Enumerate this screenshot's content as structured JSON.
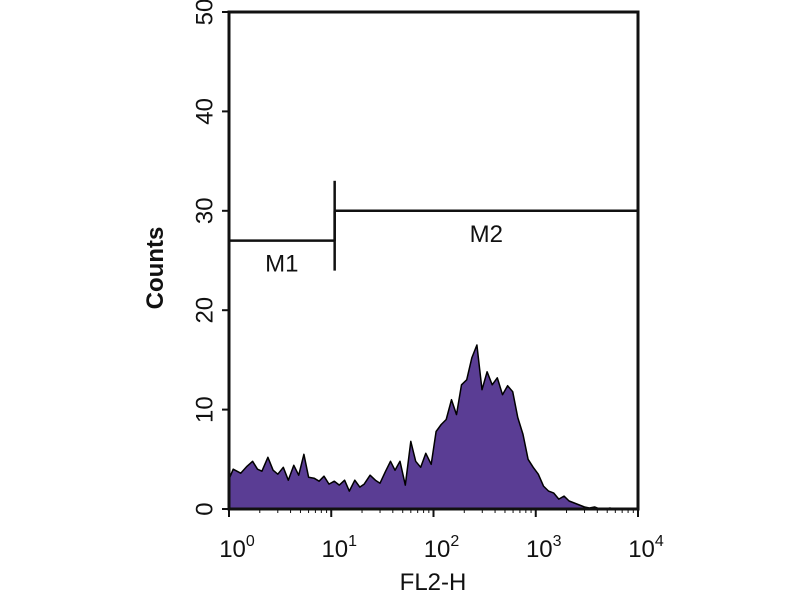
{
  "chart_data": {
    "type": "area",
    "title": "",
    "xlabel": "FL2-H",
    "ylabel": "Counts",
    "x_scale": "log",
    "xlim": [
      1,
      10000
    ],
    "ylim": [
      0,
      50
    ],
    "x_ticks": [
      {
        "base": "10",
        "exp": "0",
        "value": 1
      },
      {
        "base": "10",
        "exp": "1",
        "value": 10
      },
      {
        "base": "10",
        "exp": "2",
        "value": 100
      },
      {
        "base": "10",
        "exp": "3",
        "value": 1000
      },
      {
        "base": "10",
        "exp": "4",
        "value": 10000
      }
    ],
    "y_ticks": [
      {
        "label": "0",
        "value": 0
      },
      {
        "label": "10",
        "value": 10
      },
      {
        "label": "20",
        "value": 20
      },
      {
        "label": "30",
        "value": 30
      },
      {
        "label": "40",
        "value": 40
      },
      {
        "label": "50",
        "value": 50
      }
    ],
    "grid": false,
    "fill_color": "#5a3d94",
    "line_color": "#000000",
    "series": [
      {
        "x": [
          1,
          1.1,
          1.3,
          1.5,
          1.7,
          1.9,
          2.1,
          2.4,
          2.7,
          3.0,
          3.4,
          3.8,
          4.3,
          4.8,
          5.4,
          6.0,
          6.8,
          7.6,
          8.5,
          9.5,
          10.7,
          12,
          13.5,
          15,
          17,
          19,
          21,
          24,
          27,
          30,
          34,
          38,
          42,
          47,
          53,
          60,
          67,
          75,
          84,
          95,
          106,
          119,
          133,
          150,
          168,
          188,
          211,
          237,
          266,
          298,
          334,
          375,
          421,
          473,
          530,
          595,
          668,
          750,
          841,
          944,
          1060,
          1190,
          1335,
          1500,
          1680,
          1890,
          2120,
          2380,
          2670,
          3000,
          3350,
          3760,
          4220,
          4730,
          5310,
          5960,
          6690,
          7500,
          8410,
          9440,
          10000
        ],
        "y": [
          3,
          4,
          3.6,
          4.3,
          4.8,
          4,
          3.8,
          5.2,
          3.9,
          3.5,
          4.2,
          2.9,
          4.4,
          3.4,
          5.5,
          3.2,
          3.1,
          2.8,
          3.3,
          2.5,
          2.8,
          2.4,
          2.9,
          1.8,
          2.9,
          2.2,
          2.5,
          3.4,
          2.9,
          2.6,
          3.8,
          4.8,
          3.9,
          4.8,
          2.4,
          6.8,
          4.8,
          4.2,
          5.6,
          4.5,
          7.8,
          8.5,
          9,
          11,
          9.5,
          12.5,
          13,
          15.2,
          16.5,
          12,
          13.8,
          12.5,
          13.2,
          11.5,
          12.4,
          11.8,
          9.2,
          7.5,
          5,
          4.2,
          3.5,
          2.3,
          1.8,
          1.6,
          1,
          1.3,
          0.8,
          0.6,
          0.4,
          0.2,
          0.1,
          0.2,
          0,
          0,
          0.1,
          0,
          0,
          0,
          0,
          0,
          0
        ]
      }
    ],
    "markers": [
      {
        "label": "M1",
        "x_start": 1,
        "x_end": 10.8,
        "y": 27
      },
      {
        "label": "M2",
        "x_start": 10.8,
        "x_end": 10000,
        "y": 30
      }
    ]
  }
}
